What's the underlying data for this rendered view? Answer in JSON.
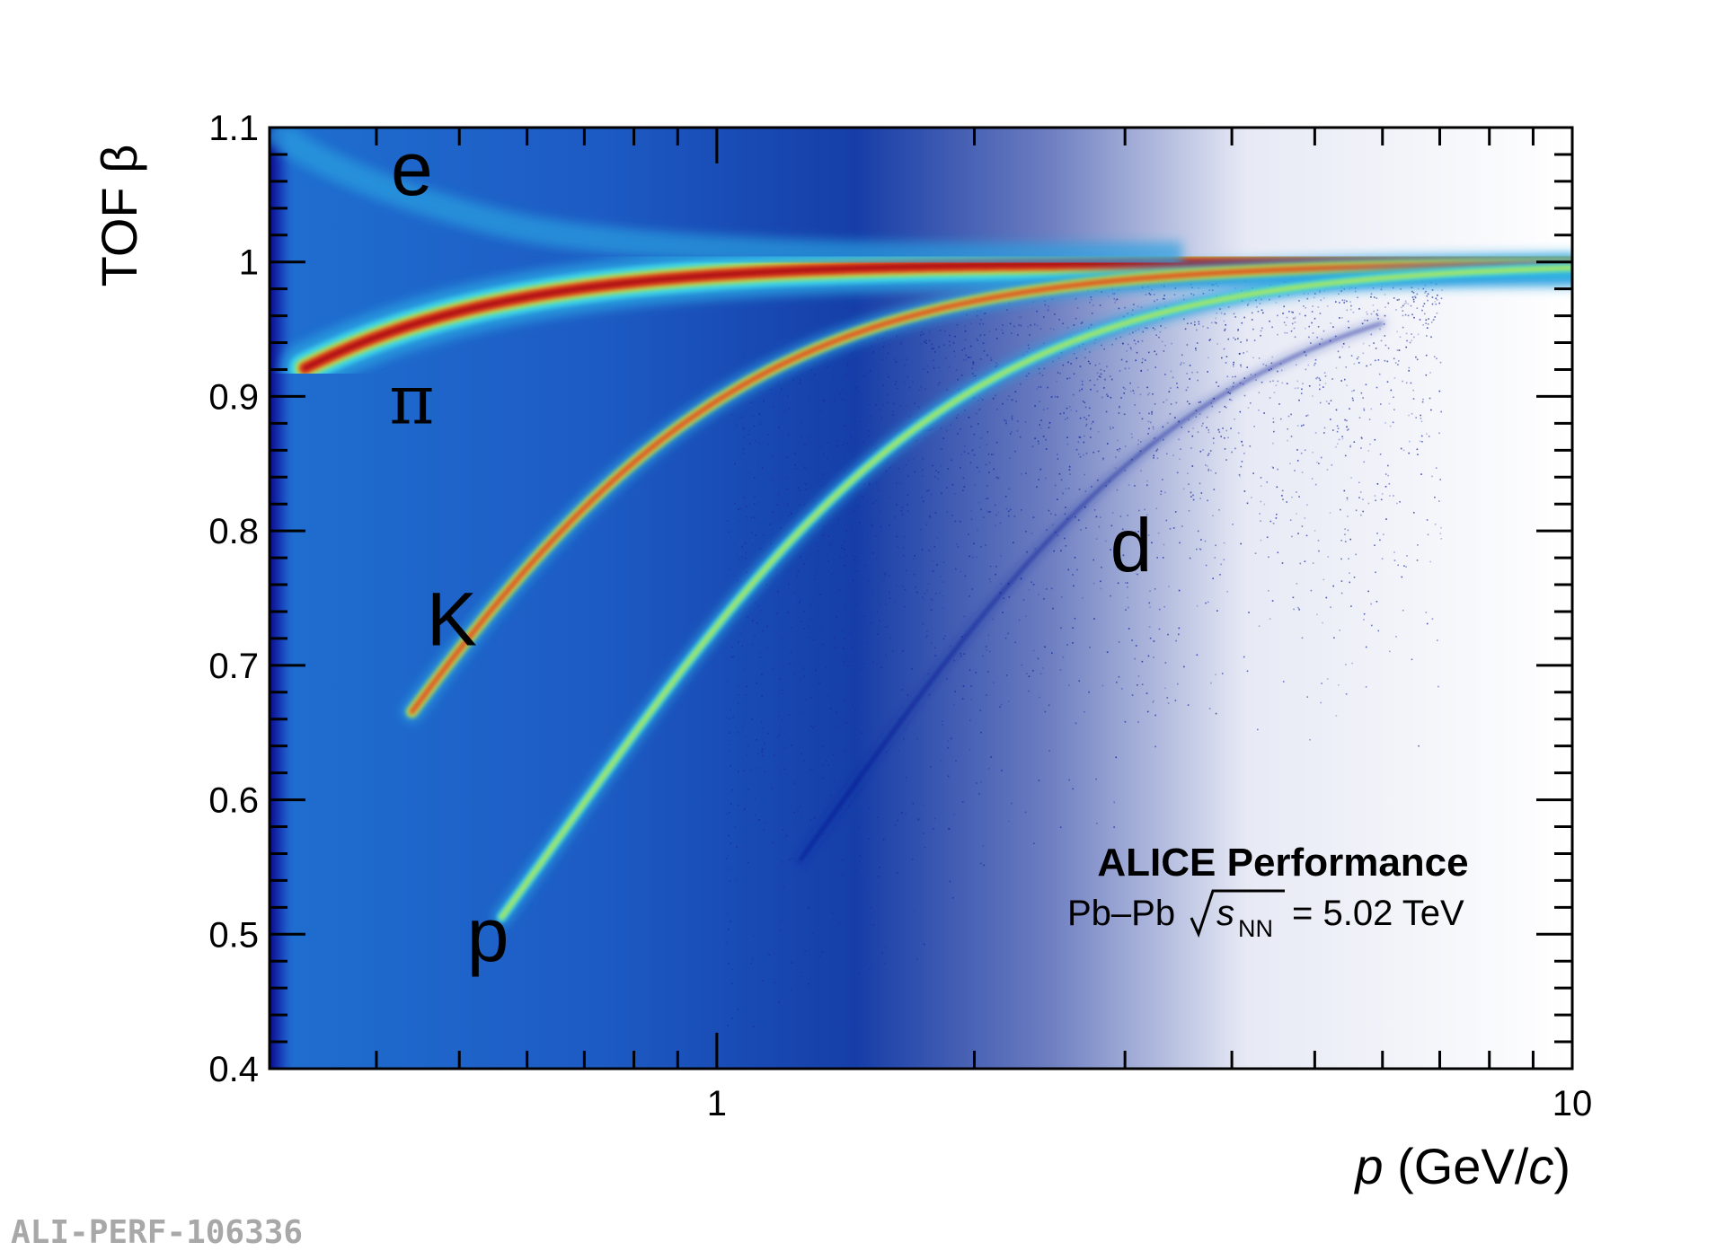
{
  "chart_data": {
    "type": "heatmap",
    "title": "",
    "xlabel": "p (GeV/c)",
    "ylabel": "TOF β",
    "x_scale": "log",
    "xlim": [
      0.3,
      10
    ],
    "ylim": [
      0.4,
      1.1
    ],
    "grid": false,
    "x_ticks": [
      {
        "value": 1,
        "label": "1"
      },
      {
        "value": 10,
        "label": "10"
      }
    ],
    "y_ticks": [
      {
        "value": 0.4,
        "label": "0.4"
      },
      {
        "value": 0.5,
        "label": "0.5"
      },
      {
        "value": 0.6,
        "label": "0.6"
      },
      {
        "value": 0.7,
        "label": "0.7"
      },
      {
        "value": 0.8,
        "label": "0.8"
      },
      {
        "value": 0.9,
        "label": "0.9"
      },
      {
        "value": 1.0,
        "label": "1"
      },
      {
        "value": 1.1,
        "label": "1.1"
      }
    ],
    "bands": [
      {
        "label": "e",
        "mass_gev": 0.000511,
        "label_p": 0.44,
        "label_beta": 1.05
      },
      {
        "label": "π",
        "mass_gev": 0.1396,
        "label_p": 0.44,
        "label_beta": 0.88
      },
      {
        "label": "K",
        "mass_gev": 0.4937,
        "label_p": 0.49,
        "label_beta": 0.715
      },
      {
        "label": "p",
        "mass_gev": 0.9383,
        "label_p": 0.54,
        "label_beta": 0.48
      },
      {
        "label": "d",
        "mass_gev": 1.8756,
        "label_p": 3.05,
        "label_beta": 0.77
      }
    ],
    "annotations": {
      "experiment": "ALICE Performance",
      "system_prefix": "Pb–Pb",
      "sqrt_symbol": "s",
      "sqrt_subscript": "NN",
      "energy": "= 5.02 TeV"
    },
    "colorscale": [
      "#0a0a8c",
      "#1a5fd0",
      "#2aa0e0",
      "#3fd8e8",
      "#b8e84a",
      "#f0c030",
      "#e84020",
      "#a00010"
    ]
  },
  "figure_id": "ALI-PERF-106336"
}
